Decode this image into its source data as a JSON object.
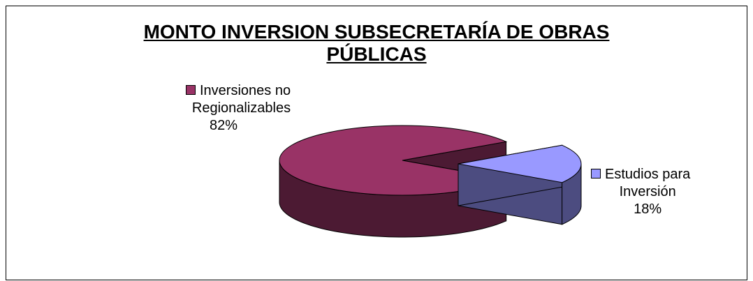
{
  "chart_data": {
    "type": "pie",
    "title_lines": [
      "MONTO INVERSION SUBSECRETARÍA DE OBRAS",
      "PÚBLICAS"
    ],
    "slices": [
      {
        "label_lines": [
          "Inversiones no",
          "Regionalizables"
        ],
        "value": 82,
        "value_text": "82%",
        "color": "#993366",
        "side_color": "#4c1a33"
      },
      {
        "label_lines": [
          "Estudios para",
          "Inversión"
        ],
        "value": 18,
        "value_text": "18%",
        "color": "#9999ff",
        "side_color": "#4c4c80"
      }
    ],
    "legend": "none"
  }
}
